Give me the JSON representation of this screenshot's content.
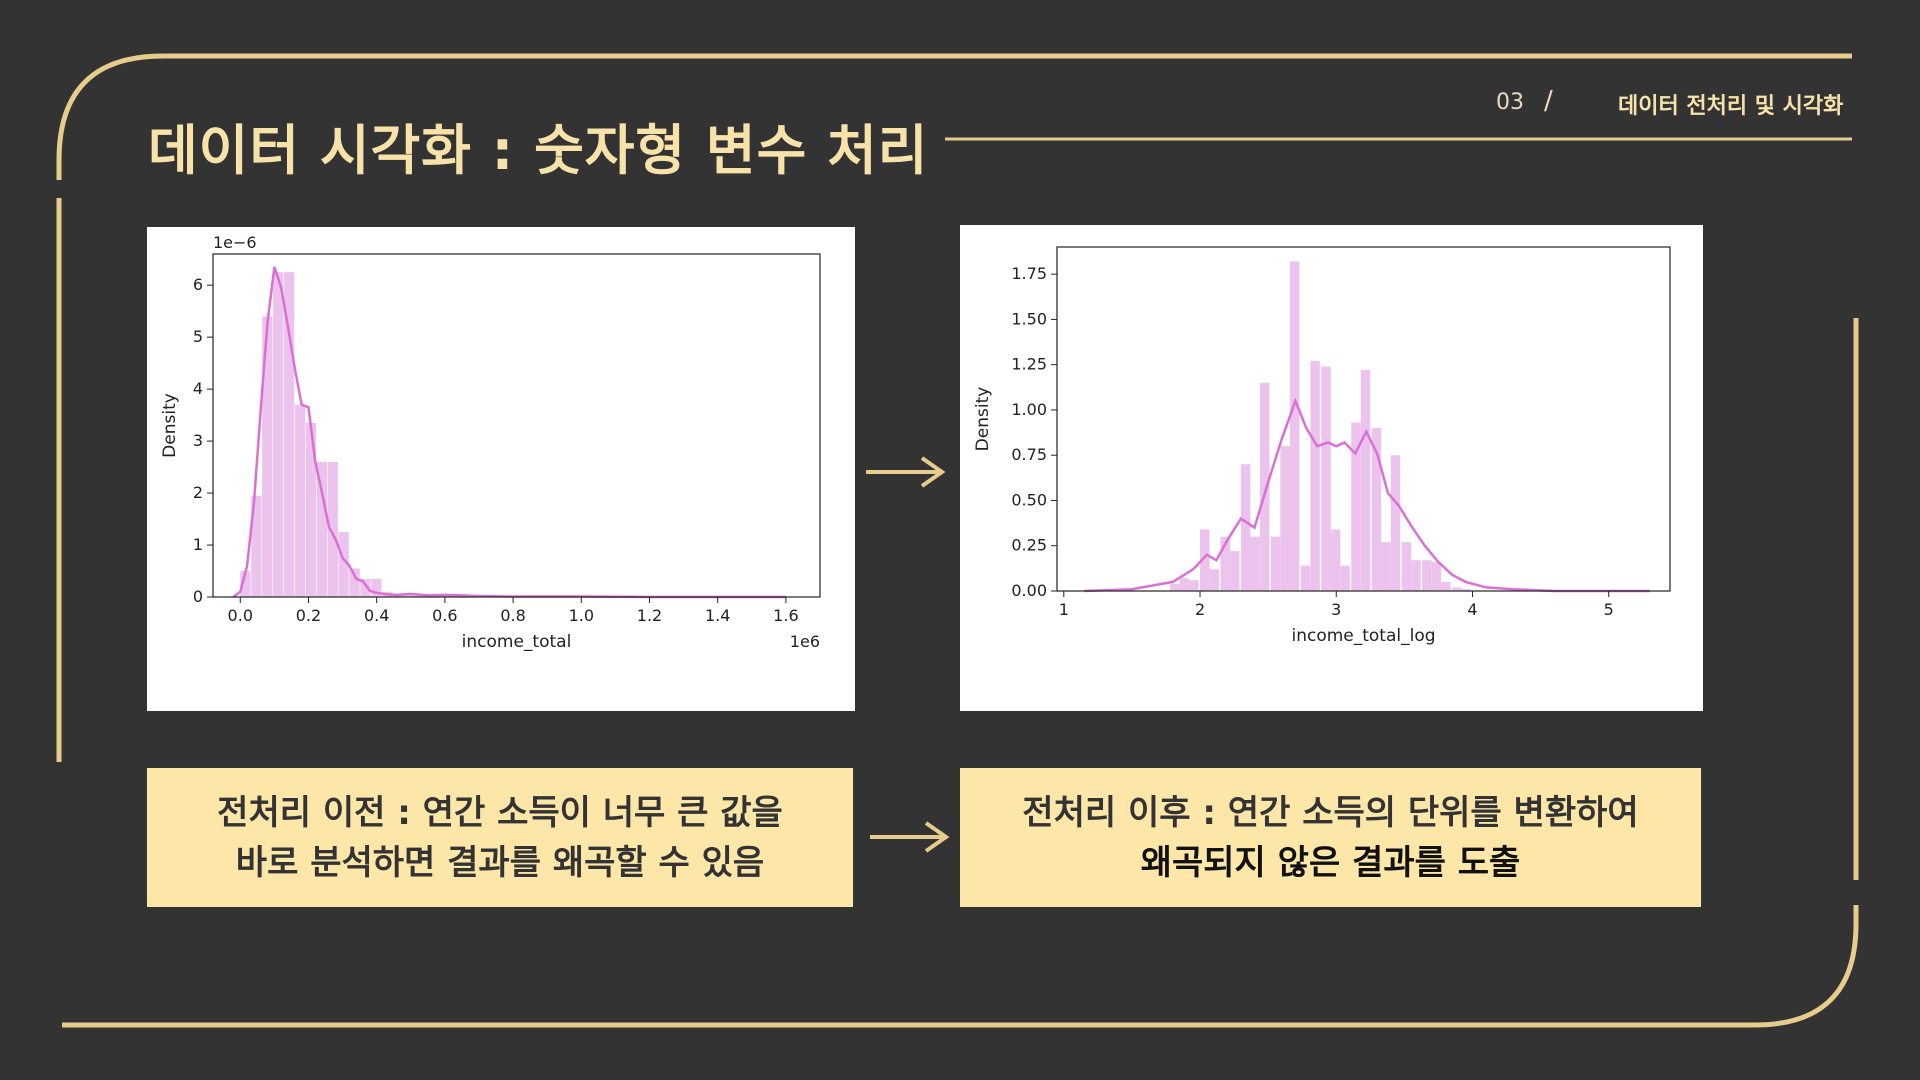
{
  "slide": {
    "title": "데이터 시각화 : 숫자형 변수 처리",
    "section_number": "03",
    "section_separator": "/",
    "section_name": "데이터 전처리 및 시각화"
  },
  "notes": {
    "before_line1": "전처리 이전 : 연간 소득이 너무 큰 값을",
    "before_line2": "바로 분석하면 결과를 왜곡할 수 있음",
    "after_line1": "전처리 이후 : 연간 소득의 단위를 변환하여",
    "after_line2": "왜곡되지 않은 결과를 도출"
  },
  "colors": {
    "background": "#333333",
    "accent_gold": "#e6cd8c",
    "note_fill": "#fde7a8",
    "bar_fill": "#ebc3ec",
    "kde_line": "#da70d6"
  },
  "chart_data": [
    {
      "type": "bar",
      "subtype": "histogram_with_kde",
      "xlabel": "income_total",
      "ylabel": "Density",
      "x_offset_label": "1e6",
      "y_offset_label": "1e−6",
      "xlim": [
        -0.08,
        1.7
      ],
      "ylim": [
        0,
        6.6
      ],
      "x_ticks": [
        0.0,
        0.2,
        0.4,
        0.6,
        0.8,
        1.0,
        1.2,
        1.4,
        1.6
      ],
      "x_tick_labels": [
        "0.0",
        "0.2",
        "0.4",
        "0.6",
        "0.8",
        "1.0",
        "1.2",
        "1.4",
        "1.6"
      ],
      "y_ticks": [
        0,
        1,
        2,
        3,
        4,
        5,
        6
      ],
      "y_tick_labels": [
        "0",
        "1",
        "2",
        "3",
        "4",
        "5",
        "6"
      ],
      "bin_width": 0.032,
      "bins_left": [
        0.0,
        0.032,
        0.064,
        0.096,
        0.128,
        0.16,
        0.192,
        0.224,
        0.256,
        0.288,
        0.32,
        0.352,
        0.384,
        0.416,
        0.448,
        0.48,
        0.512,
        0.544,
        0.576,
        0.608,
        0.64
      ],
      "bin_values": [
        0.5,
        1.95,
        5.4,
        6.25,
        6.25,
        3.7,
        3.35,
        2.6,
        2.6,
        1.25,
        0.55,
        0.35,
        0.35,
        0.1,
        0.06,
        0.05,
        0.04,
        0.03,
        0.03,
        0.06,
        0.04
      ],
      "kde_x": [
        -0.02,
        0.0,
        0.02,
        0.04,
        0.06,
        0.08,
        0.1,
        0.12,
        0.14,
        0.16,
        0.18,
        0.2,
        0.22,
        0.24,
        0.26,
        0.28,
        0.3,
        0.32,
        0.34,
        0.36,
        0.38,
        0.4,
        0.43,
        0.46,
        0.5,
        0.55,
        0.6,
        0.65,
        0.7,
        0.8,
        0.9,
        1.0,
        1.2,
        1.4,
        1.6
      ],
      "kde_y": [
        0.0,
        0.1,
        0.6,
        1.8,
        3.6,
        5.3,
        6.35,
        5.95,
        5.2,
        4.4,
        3.7,
        3.65,
        2.6,
        2.0,
        1.35,
        1.1,
        0.75,
        0.6,
        0.35,
        0.3,
        0.12,
        0.08,
        0.05,
        0.04,
        0.06,
        0.03,
        0.04,
        0.03,
        0.02,
        0.01,
        0.01,
        0.01,
        0.0,
        0.0,
        0.0
      ]
    },
    {
      "type": "bar",
      "subtype": "histogram_with_kde",
      "xlabel": "income_total_log",
      "ylabel": "Density",
      "xlim": [
        0.95,
        5.45
      ],
      "ylim": [
        0,
        1.9
      ],
      "x_ticks": [
        1,
        2,
        3,
        4,
        5
      ],
      "x_tick_labels": [
        "1",
        "2",
        "3",
        "4",
        "5"
      ],
      "y_ticks": [
        0.0,
        0.25,
        0.5,
        0.75,
        1.0,
        1.25,
        1.5,
        1.75
      ],
      "y_tick_labels": [
        "0.00",
        "0.25",
        "0.50",
        "0.75",
        "1.00",
        "1.25",
        "1.50",
        "1.75"
      ],
      "bin_width": 0.074,
      "bins_left": [
        1.78,
        1.85,
        1.92,
        2.0,
        2.07,
        2.15,
        2.22,
        2.3,
        2.37,
        2.44,
        2.52,
        2.59,
        2.66,
        2.74,
        2.81,
        2.89,
        2.96,
        3.03,
        3.11,
        3.18,
        3.26,
        3.33,
        3.4,
        3.48,
        3.55,
        3.63,
        3.7,
        3.77,
        3.85,
        3.92
      ],
      "bin_values": [
        0.04,
        0.07,
        0.06,
        0.34,
        0.12,
        0.3,
        0.22,
        0.7,
        0.3,
        1.15,
        0.3,
        0.8,
        1.82,
        0.14,
        1.27,
        1.24,
        0.34,
        0.14,
        0.93,
        1.22,
        0.9,
        0.27,
        0.75,
        0.27,
        0.17,
        0.17,
        0.16,
        0.05,
        0.02,
        0.01
      ],
      "kde_x": [
        1.15,
        1.5,
        1.8,
        1.95,
        2.05,
        2.12,
        2.2,
        2.3,
        2.4,
        2.5,
        2.6,
        2.7,
        2.78,
        2.86,
        2.94,
        3.0,
        3.06,
        3.14,
        3.22,
        3.3,
        3.38,
        3.46,
        3.55,
        3.65,
        3.75,
        3.85,
        3.95,
        4.1,
        4.3,
        4.6,
        5.0,
        5.3
      ],
      "kde_y": [
        0.0,
        0.01,
        0.05,
        0.12,
        0.2,
        0.17,
        0.28,
        0.4,
        0.35,
        0.6,
        0.84,
        1.05,
        0.9,
        0.8,
        0.82,
        0.8,
        0.82,
        0.76,
        0.88,
        0.76,
        0.54,
        0.47,
        0.36,
        0.25,
        0.16,
        0.09,
        0.05,
        0.02,
        0.01,
        0.0,
        0.0,
        0.0
      ]
    }
  ]
}
